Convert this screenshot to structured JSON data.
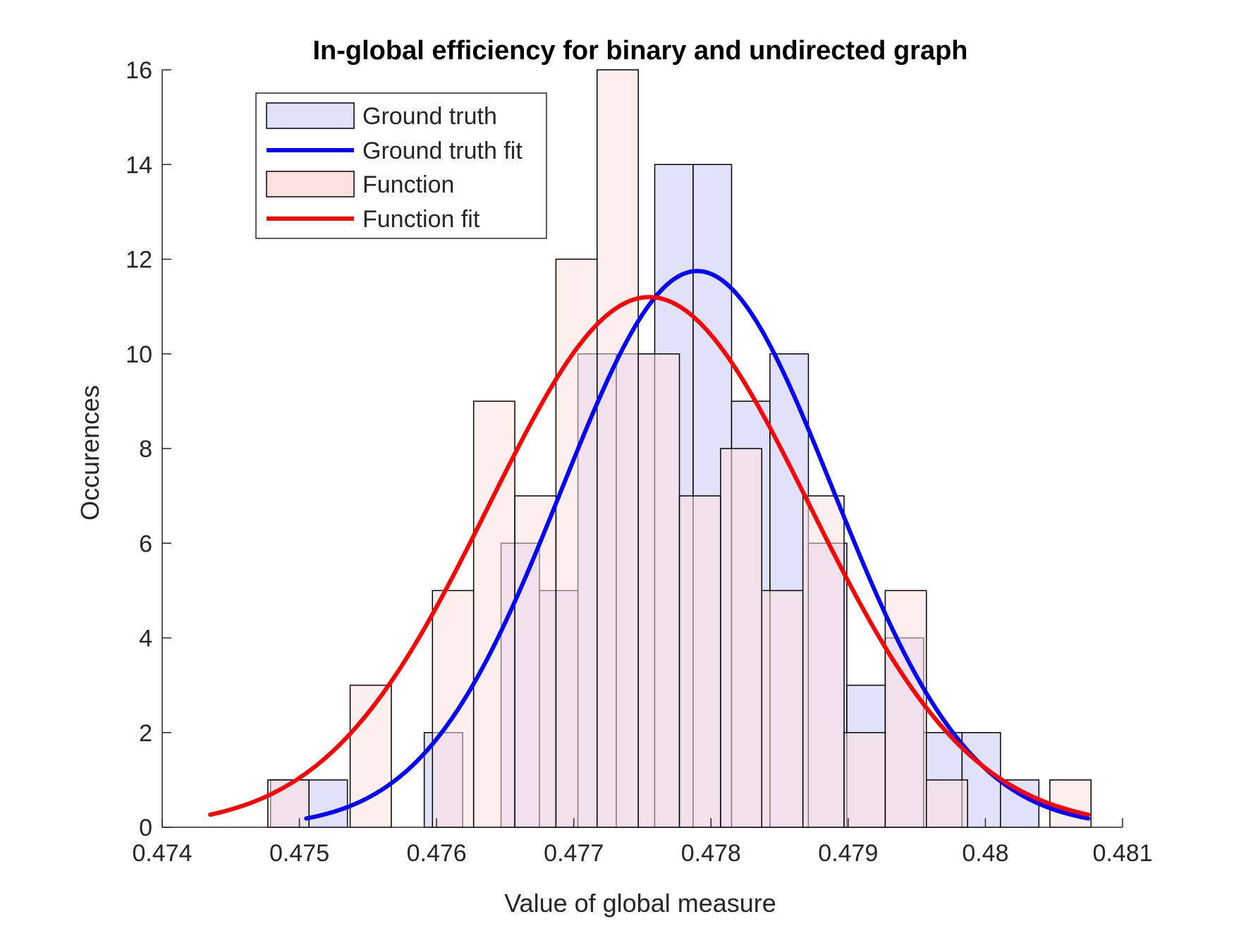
{
  "chart_data": {
    "type": "bar",
    "title": "In-global efficiency for binary and undirected graph",
    "xlabel": "Value of global measure",
    "ylabel": "Occurences",
    "xlim": [
      0.474,
      0.481
    ],
    "ylim": [
      0,
      16
    ],
    "x_ticks": [
      0.474,
      0.475,
      0.476,
      0.477,
      0.478,
      0.479,
      0.48,
      0.481
    ],
    "x_tick_labels": [
      "0.474",
      "0.475",
      "0.476",
      "0.477",
      "0.478",
      "0.479",
      "0.48",
      "0.481"
    ],
    "y_ticks": [
      0,
      2,
      4,
      6,
      8,
      10,
      12,
      14,
      16
    ],
    "y_tick_labels": [
      "0",
      "2",
      "4",
      "6",
      "8",
      "10",
      "12",
      "14",
      "16"
    ],
    "grid": false,
    "legend_position": "top-left",
    "series": [
      {
        "name": "Ground truth",
        "kind": "histogram",
        "color": "#e1e1fa",
        "bin_edges": [
          0.47479,
          0.47507,
          0.47535,
          0.47563,
          0.47591,
          0.47619,
          0.47647,
          0.47675,
          0.47703,
          0.47731,
          0.47759,
          0.47787,
          0.47815,
          0.47843,
          0.47871,
          0.47899,
          0.47927,
          0.47955,
          0.47983,
          0.48011,
          0.48039
        ],
        "counts": [
          1,
          1,
          0,
          0,
          2,
          0,
          6,
          5,
          10,
          10,
          14,
          14,
          9,
          10,
          6,
          3,
          4,
          2,
          2,
          1
        ]
      },
      {
        "name": "Ground truth fit",
        "kind": "normal_fit",
        "color": "#0000ff",
        "mean": 0.4779,
        "sd": 0.00099,
        "peak": 11.75,
        "x_range": [
          0.47505,
          0.48075
        ]
      },
      {
        "name": "Function",
        "kind": "histogram",
        "color": "#fde1e1",
        "bin_edges": [
          0.47477,
          0.47507,
          0.47537,
          0.47567,
          0.47597,
          0.47627,
          0.47657,
          0.47687,
          0.47717,
          0.47747,
          0.47777,
          0.47807,
          0.47837,
          0.47867,
          0.47897,
          0.47927,
          0.47957,
          0.47987,
          0.48017,
          0.48047,
          0.48077
        ],
        "counts": [
          1,
          0,
          3,
          0,
          5,
          9,
          7,
          12,
          16,
          10,
          7,
          8,
          5,
          7,
          2,
          5,
          1,
          0,
          0,
          1
        ]
      },
      {
        "name": "Function fit",
        "kind": "normal_fit",
        "color": "#ff0000",
        "mean": 0.47755,
        "sd": 0.00117,
        "peak": 11.2,
        "x_range": [
          0.47435,
          0.48075
        ]
      }
    ]
  }
}
